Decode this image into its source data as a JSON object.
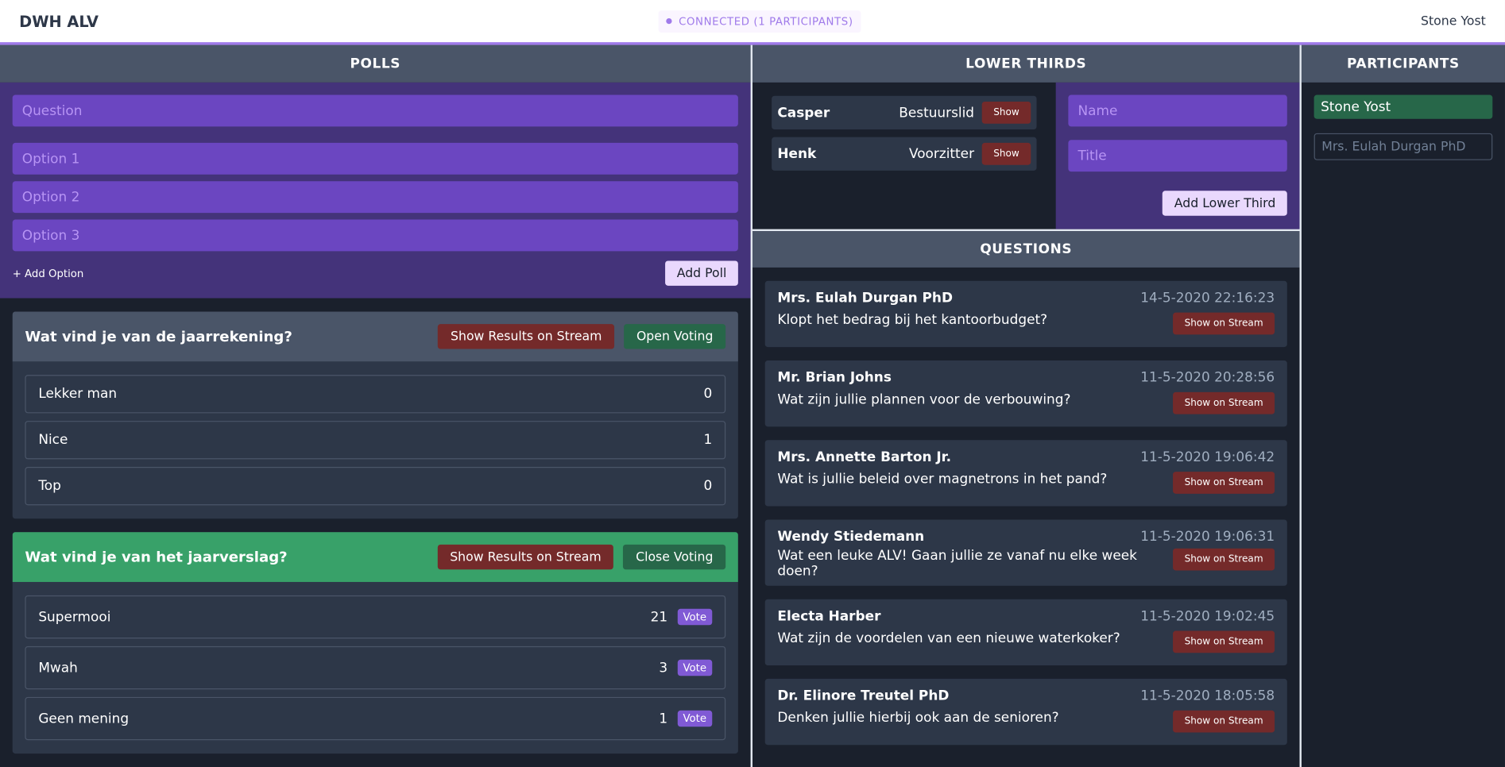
{
  "header": {
    "title": "DWH ALV",
    "status": "CONNECTED (1 PARTICIPANTS)",
    "user": "Stone Yost"
  },
  "polls": {
    "title": "POLLS",
    "form": {
      "question": "Question",
      "options": [
        "Option 1",
        "Option 2",
        "Option 3"
      ],
      "add_option": "+ Add Option",
      "add_poll": "Add Poll"
    },
    "items": [
      {
        "question": "Wat vind je van de jaarrekening?",
        "show_results": "Show Results on Stream",
        "toggle": "Open Voting",
        "open": false,
        "options": [
          {
            "label": "Lekker man",
            "votes": 0
          },
          {
            "label": "Nice",
            "votes": 1
          },
          {
            "label": "Top",
            "votes": 0
          }
        ]
      },
      {
        "question": "Wat vind je van het jaarverslag?",
        "show_results": "Show Results on Stream",
        "toggle": "Close Voting",
        "open": true,
        "options": [
          {
            "label": "Supermooi",
            "votes": 21,
            "vote": "Vote"
          },
          {
            "label": "Mwah",
            "votes": 3,
            "vote": "Vote"
          },
          {
            "label": "Geen mening",
            "votes": 1,
            "vote": "Vote"
          }
        ]
      }
    ]
  },
  "lower_thirds": {
    "title": "LOWER THIRDS",
    "items": [
      {
        "name": "Casper",
        "role": "Bestuurslid",
        "show": "Show"
      },
      {
        "name": "Henk",
        "role": "Voorzitter",
        "show": "Show"
      }
    ],
    "form": {
      "name": "Name",
      "title": "Title",
      "add": "Add Lower Third"
    }
  },
  "questions": {
    "title": "QUESTIONS",
    "items": [
      {
        "author": "Mrs. Eulah Durgan PhD",
        "text": "Klopt het bedrag bij het kantoorbudget?",
        "date": "14-5-2020 22:16:23",
        "action": "Show on Stream"
      },
      {
        "author": "Mr. Brian Johns",
        "text": "Wat zijn jullie plannen voor de verbouwing?",
        "date": "11-5-2020 20:28:56",
        "action": "Show on Stream"
      },
      {
        "author": "Mrs. Annette Barton Jr.",
        "text": "Wat is jullie beleid over magnetrons in het pand?",
        "date": "11-5-2020 19:06:42",
        "action": "Show on Stream"
      },
      {
        "author": "Wendy Stiedemann",
        "text": "Wat een leuke ALV! Gaan jullie ze vanaf nu elke week doen?",
        "date": "11-5-2020 19:06:31",
        "action": "Show on Stream"
      },
      {
        "author": "Electa Harber",
        "text": "Wat zijn de voordelen van een nieuwe waterkoker?",
        "date": "11-5-2020 19:02:45",
        "action": "Show on Stream"
      },
      {
        "author": "Dr. Elinore Treutel PhD",
        "text": "Denken jullie hierbij ook aan de senioren?",
        "date": "11-5-2020 18:05:58",
        "action": "Show on Stream"
      }
    ]
  },
  "participants": {
    "title": "PARTICIPANTS",
    "items": [
      "Stone Yost"
    ],
    "input": "Mrs. Eulah Durgan PhD"
  }
}
